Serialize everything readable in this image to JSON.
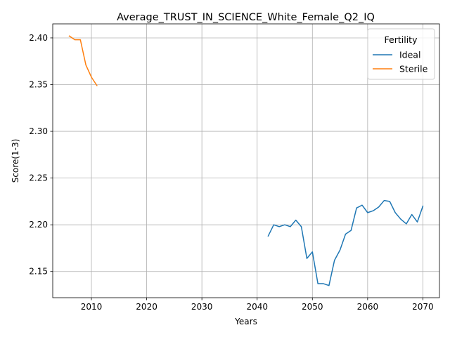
{
  "chart_data": {
    "type": "line",
    "title": "Average_TRUST_IN_SCIENCE_White_Female_Q2_IQ",
    "xlabel": "Years",
    "ylabel": "Score(1-3)",
    "xlim": [
      2003,
      2073
    ],
    "ylim": [
      2.122,
      2.415
    ],
    "xticks": [
      2010,
      2020,
      2030,
      2040,
      2050,
      2060,
      2070
    ],
    "yticks": [
      2.15,
      2.2,
      2.25,
      2.3,
      2.35,
      2.4
    ],
    "xtick_labels": [
      "2010",
      "2020",
      "2030",
      "2040",
      "2050",
      "2060",
      "2070"
    ],
    "ytick_labels": [
      "2.15",
      "2.20",
      "2.25",
      "2.30",
      "2.35",
      "2.40"
    ],
    "grid": true,
    "legend": {
      "title": "Fertility",
      "position": "top-right"
    },
    "series": [
      {
        "name": "Ideal",
        "color": "#1f77b4",
        "x": [
          2042,
          2043,
          2044,
          2045,
          2046,
          2047,
          2048,
          2049,
          2050,
          2051,
          2052,
          2053,
          2054,
          2055,
          2056,
          2057,
          2058,
          2059,
          2060,
          2061,
          2062,
          2063,
          2064,
          2065,
          2066,
          2067,
          2068,
          2069,
          2070
        ],
        "y": [
          2.188,
          2.2,
          2.198,
          2.2,
          2.198,
          2.205,
          2.198,
          2.164,
          2.171,
          2.137,
          2.137,
          2.135,
          2.162,
          2.173,
          2.19,
          2.194,
          2.218,
          2.221,
          2.213,
          2.215,
          2.219,
          2.226,
          2.225,
          2.213,
          2.206,
          2.201,
          2.211,
          2.203,
          2.22
        ]
      },
      {
        "name": "Sterile",
        "color": "#ff7f0e",
        "x": [
          2006,
          2007,
          2008,
          2009,
          2010,
          2011
        ],
        "y": [
          2.402,
          2.398,
          2.398,
          2.371,
          2.358,
          2.349
        ]
      }
    ]
  }
}
